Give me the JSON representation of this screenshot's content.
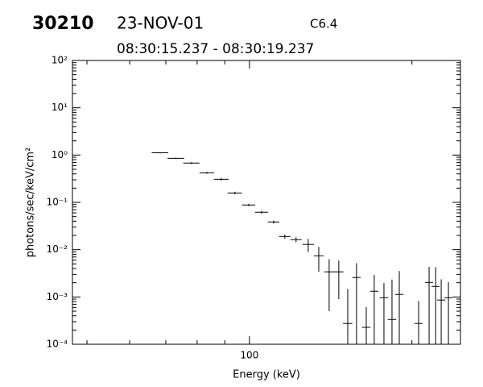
{
  "header": {
    "id": "30210",
    "date": "23-NOV-01",
    "class": "C6.4",
    "time_range": "08:30:15.237 - 08:30:19.237"
  },
  "chart_data": {
    "type": "scatter",
    "xlabel": "Energy (keV)",
    "ylabel": "photons/sec/keV/cm²",
    "xscale": "log",
    "yscale": "log",
    "color": "#000000",
    "xlim": [
      47,
      246
    ],
    "ylim": [
      0.0001,
      100
    ],
    "xticks": [
      100
    ],
    "xminorticks": [
      50,
      60,
      70,
      80,
      90,
      200
    ],
    "yticks": [
      {
        "value": 100,
        "label": "10²"
      },
      {
        "value": 10,
        "label": "10¹"
      },
      {
        "value": 1,
        "label": "10⁰"
      },
      {
        "value": 0.1,
        "label": "10⁻¹"
      },
      {
        "value": 0.01,
        "label": "10⁻²"
      },
      {
        "value": 0.001,
        "label": "10⁻³"
      },
      {
        "value": 0.0001,
        "label": "10⁻⁴"
      }
    ],
    "yminorticks": [
      20,
      30,
      40,
      50,
      60,
      70,
      80,
      90,
      2,
      3,
      4,
      5,
      6,
      7,
      8,
      9,
      0.2,
      0.3,
      0.4,
      0.5,
      0.6,
      0.7,
      0.8,
      0.9,
      0.02,
      0.03,
      0.04,
      0.05,
      0.06,
      0.07,
      0.08,
      0.09,
      0.002,
      0.003,
      0.004,
      0.005,
      0.006,
      0.007,
      0.008,
      0.009,
      0.0002,
      0.0003,
      0.0004,
      0.0005,
      0.0006,
      0.0007,
      0.0008,
      0.0009
    ],
    "x": [
      68.3,
      73.1,
      78.1,
      83.4,
      88.7,
      94.0,
      99.7,
      105.3,
      110.9,
      116.3,
      122.0,
      128.5,
      134.4,
      140.5,
      146.4,
      152.1,
      157.9,
      164.6,
      170.3,
      177.5,
      183.7,
      189.5,
      205.8,
      215.2,
      221.3,
      226.6,
      233.7
    ],
    "xerr": [
      2.4,
      2.6,
      2.7,
      2.6,
      2.8,
      2.9,
      2.8,
      2.9,
      2.7,
      2.8,
      2.9,
      3.1,
      2.8,
      2.9,
      3.0,
      3.0,
      2.8,
      3.0,
      3.0,
      3.2,
      3.3,
      3.4,
      3.6,
      3.7,
      3.8,
      3.9,
      4.0
    ],
    "values": [
      1.12,
      0.855,
      0.676,
      0.422,
      0.308,
      0.158,
      0.0879,
      0.0617,
      0.0385,
      0.019,
      0.0163,
      0.0129,
      0.00743,
      0.0034,
      0.0034,
      0.000275,
      0.00258,
      0.000228,
      0.00132,
      0.000966,
      0.000334,
      0.00113,
      0.000275,
      0.00203,
      0.00167,
      0.00086,
      0.000966
    ],
    "yerr": [
      0.03,
      0.03,
      0.03,
      0.02,
      0.02,
      0.01,
      0.005,
      0.004,
      0.003,
      0.002,
      0.002,
      0.004,
      0.004,
      0.0029,
      0.0025,
      0.0012,
      0.0026,
      0.00038,
      0.0016,
      0.001,
      0.002,
      0.0024,
      0.00055,
      0.0023,
      0.0026,
      0.0015,
      0.0011
    ]
  }
}
